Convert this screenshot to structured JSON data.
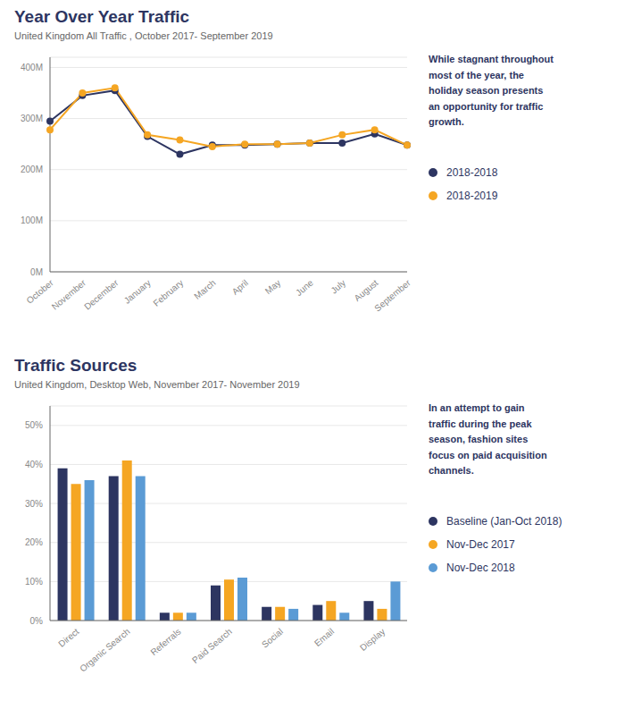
{
  "chart_data": [
    {
      "type": "line",
      "title": "Year Over Year Traffic",
      "subtitle": "United Kingdom All Traffic , October 2017- September 2019",
      "categories": [
        "October",
        "November",
        "December",
        "January",
        "February",
        "March",
        "April",
        "May",
        "June",
        "July",
        "August",
        "September"
      ],
      "series": [
        {
          "name": "2018-2018",
          "color": "#2d3561",
          "marker": "circle",
          "values": [
            295,
            345,
            355,
            265,
            230,
            248,
            248,
            250,
            252,
            252,
            270,
            248
          ]
        },
        {
          "name": "2018-2019",
          "color": "#f5a623",
          "marker": "circle",
          "values": [
            278,
            350,
            360,
            268,
            258,
            245,
            250,
            250,
            252,
            268,
            278,
            248
          ]
        }
      ],
      "ylim": [
        0,
        420
      ],
      "yticks": [
        {
          "value": 0,
          "label": "0M"
        },
        {
          "value": 100,
          "label": "100M"
        },
        {
          "value": 200,
          "label": "200M"
        },
        {
          "value": 300,
          "label": "300M"
        },
        {
          "value": 400,
          "label": "400M"
        }
      ],
      "grid": true,
      "legend": "right",
      "annotations": [
        "While stagnant throughout\nmost of the year, the\nholiday season presents\nan opportunity for traffic\ngrowth."
      ]
    },
    {
      "type": "bar",
      "title": "Traffic Sources",
      "subtitle": "United Kingdom, Desktop Web, November 2017- November 2019",
      "categories": [
        "Direct",
        "Organic Search",
        "Referrals",
        "Paid Search",
        "Social",
        "Email",
        "Display"
      ],
      "series": [
        {
          "name": "Baseline (Jan-Oct 2018)",
          "color": "#2d3561",
          "values": [
            39,
            37,
            2,
            9,
            3.5,
            4,
            5
          ]
        },
        {
          "name": "Nov-Dec 2017",
          "color": "#f5a623",
          "values": [
            35,
            41,
            2,
            10.5,
            3.5,
            5,
            3
          ]
        },
        {
          "name": "Nov-Dec 2018",
          "color": "#5b9bd5",
          "values": [
            36,
            37,
            2,
            11,
            3,
            2,
            10
          ]
        }
      ],
      "ylim": [
        0,
        55
      ],
      "yticks": [
        {
          "value": 0,
          "label": "0%"
        },
        {
          "value": 10,
          "label": "10%"
        },
        {
          "value": 20,
          "label": "20%"
        },
        {
          "value": 30,
          "label": "30%"
        },
        {
          "value": 40,
          "label": "40%"
        },
        {
          "value": 50,
          "label": "50%"
        }
      ],
      "grid": true,
      "legend": "right",
      "annotations": [
        "In an attempt to gain\ntraffic during the peak\nseason, fashion sites\nfocus on paid acquisition\nchannels."
      ]
    }
  ]
}
